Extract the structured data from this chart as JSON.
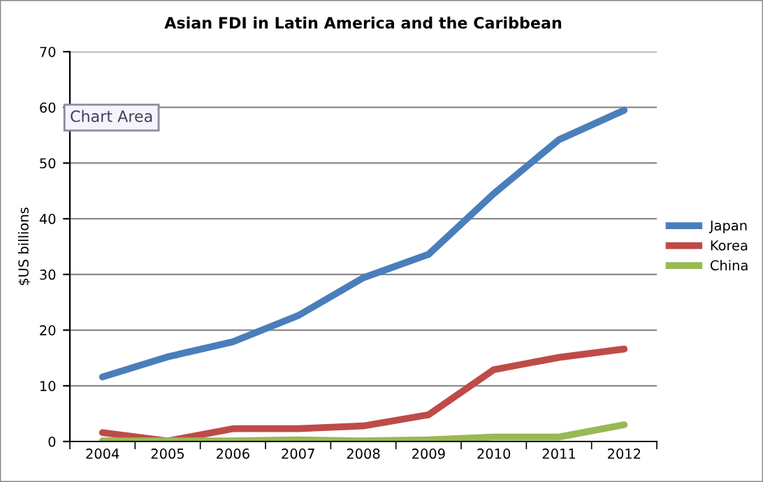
{
  "chart_data": {
    "type": "line",
    "title": "Asian FDI in Latin America and the Caribbean",
    "ylabel": "$US billions",
    "categories": [
      "2004",
      "2005",
      "2006",
      "2007",
      "2008",
      "2009",
      "2010",
      "2011",
      "2012"
    ],
    "series": [
      {
        "name": "Japan",
        "color": "#4a7ebb",
        "values": [
          11.6,
          15.2,
          17.9,
          22.6,
          29.4,
          33.6,
          44.5,
          54.2,
          59.5
        ]
      },
      {
        "name": "Korea",
        "color": "#be4b48",
        "values": [
          1.6,
          0.1,
          2.3,
          2.3,
          2.8,
          4.8,
          12.9,
          15.1,
          16.6
        ]
      },
      {
        "name": "China",
        "color": "#98b954",
        "values": [
          0.1,
          0.1,
          0.1,
          0.3,
          0.1,
          0.3,
          0.8,
          0.8,
          3.0
        ]
      }
    ],
    "ylim": [
      0,
      70
    ],
    "yticks": [
      0,
      10,
      20,
      30,
      40,
      50,
      60,
      70
    ],
    "grid": "y",
    "legend": "right",
    "marker": "none",
    "line_style": "solid",
    "annotations": [
      "Chart Area"
    ]
  }
}
